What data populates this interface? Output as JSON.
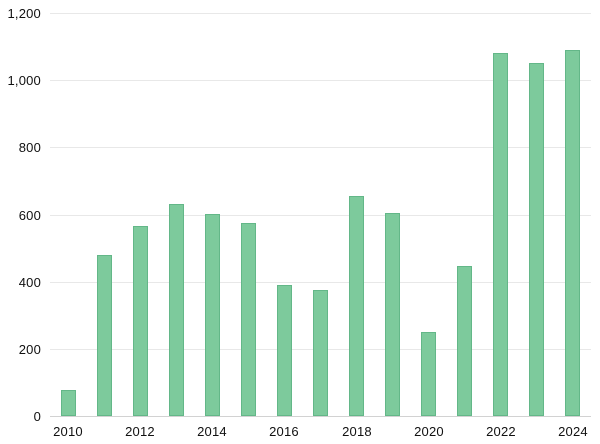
{
  "chart_data": {
    "type": "bar",
    "title": "",
    "xlabel": "",
    "ylabel": "",
    "categories": [
      "2010",
      "2011",
      "2012",
      "2013",
      "2014",
      "2015",
      "2016",
      "2017",
      "2018",
      "2019",
      "2020",
      "2021",
      "2022",
      "2023",
      "2024"
    ],
    "values": [
      78,
      479,
      566,
      630,
      600,
      576,
      390,
      376,
      655,
      604,
      251,
      448,
      1082,
      1050,
      1090
    ],
    "ylim": [
      0,
      1200
    ],
    "ytick_interval": 200,
    "ytick_labels": [
      "0",
      "200",
      "400",
      "600",
      "800",
      "1,000",
      "1,200"
    ],
    "xtick_labels": [
      "2010",
      "2012",
      "2014",
      "2016",
      "2018",
      "2020",
      "2022",
      "2024"
    ],
    "grid": true,
    "legend": false,
    "colors": {
      "bar_fill": "#7dca9c",
      "bar_border": "#63b788",
      "gridline": "#e8e8e8",
      "axis_line": "#d2d2d2",
      "tick_text": "#111111",
      "background": "#ffffff"
    }
  }
}
